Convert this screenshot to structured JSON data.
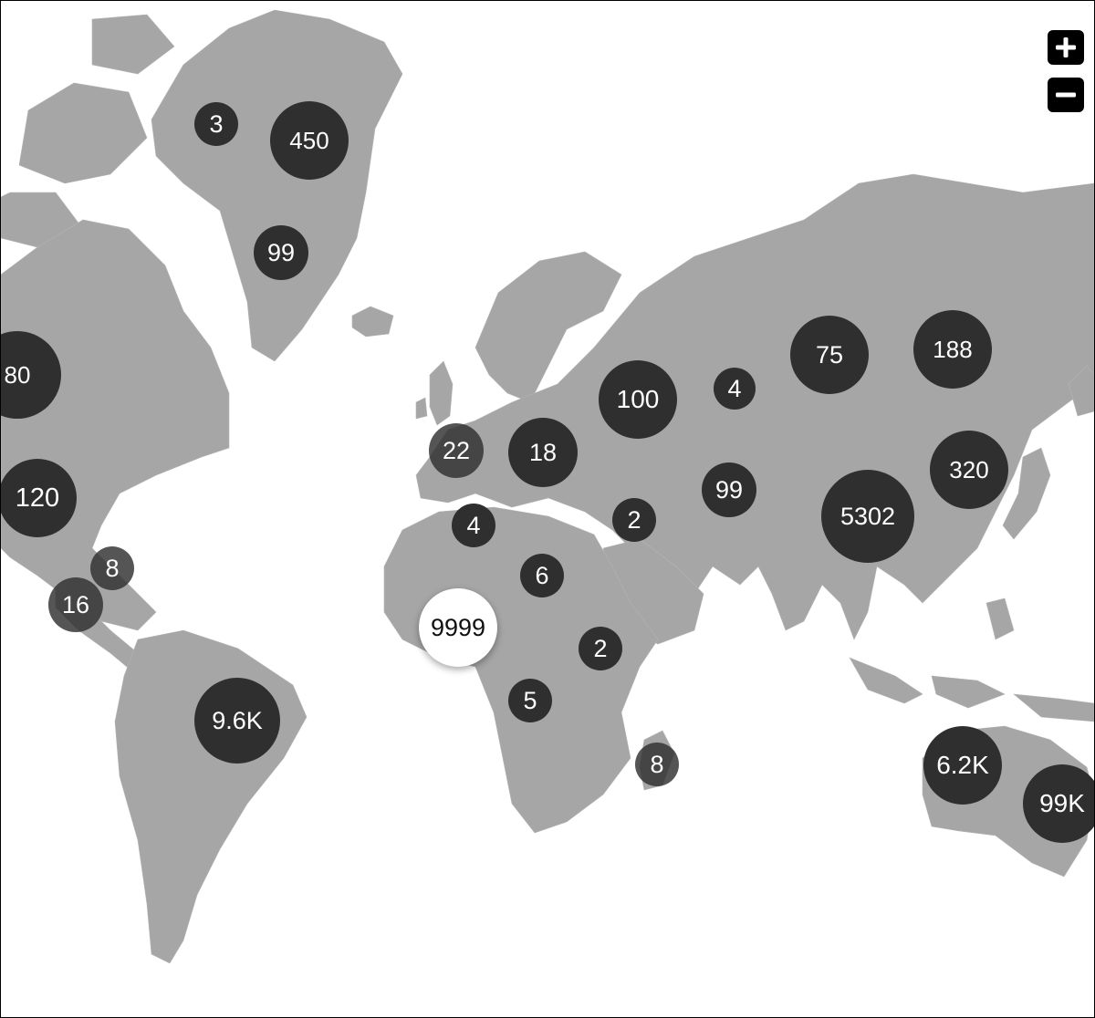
{
  "controls": {
    "zoom_in_label": "+",
    "zoom_out_label": "−"
  },
  "colors": {
    "land": "#a6a6a6",
    "ocean": "#ffffff",
    "cluster": "#2f2f2f",
    "cluster_selected": "#ffffff",
    "control": "#000000"
  },
  "clusters": [
    {
      "label": "3",
      "region": "greenland-west"
    },
    {
      "label": "450",
      "region": "greenland-east"
    },
    {
      "label": "99",
      "region": "greenland-south"
    },
    {
      "label": "80",
      "region": "canada-west"
    },
    {
      "label": "120",
      "region": "usa"
    },
    {
      "label": "8",
      "region": "gulf-of-mexico"
    },
    {
      "label": "16",
      "region": "mexico"
    },
    {
      "label": "9.6K",
      "region": "brazil"
    },
    {
      "label": "22",
      "region": "western-europe"
    },
    {
      "label": "18",
      "region": "eastern-europe"
    },
    {
      "label": "100",
      "region": "russia-west"
    },
    {
      "label": "4",
      "region": "russia-central"
    },
    {
      "label": "75",
      "region": "russia-siberia"
    },
    {
      "label": "188",
      "region": "russia-east"
    },
    {
      "label": "4",
      "region": "north-africa"
    },
    {
      "label": "6",
      "region": "sahara"
    },
    {
      "label": "2",
      "region": "middle-east"
    },
    {
      "label": "99",
      "region": "central-asia"
    },
    {
      "label": "5302",
      "region": "china"
    },
    {
      "label": "320",
      "region": "north-china"
    },
    {
      "label": "9999",
      "region": "west-africa",
      "selected": true
    },
    {
      "label": "2",
      "region": "east-africa"
    },
    {
      "label": "5",
      "region": "central-africa"
    },
    {
      "label": "8",
      "region": "madagascar"
    },
    {
      "label": "6.2K",
      "region": "australia-west"
    },
    {
      "label": "99K",
      "region": "australia-east"
    }
  ]
}
